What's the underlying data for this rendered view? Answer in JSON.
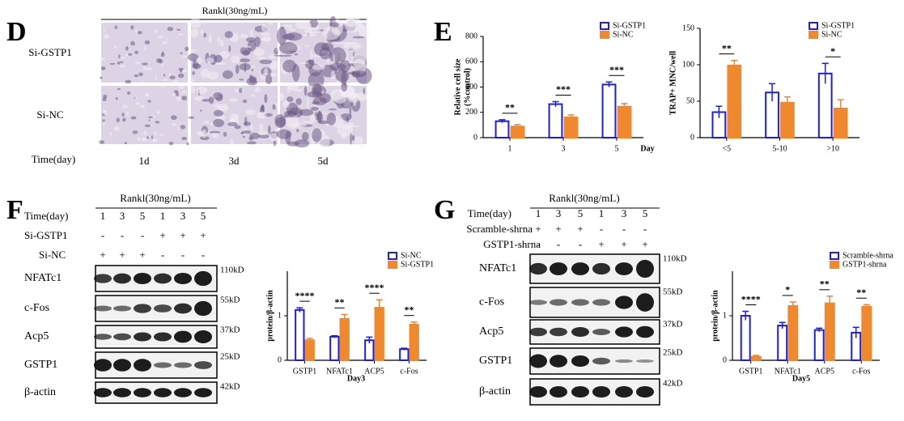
{
  "panel_d": {
    "label": "D",
    "header": "Rankl(30ng/mL)",
    "rows": [
      "Si-GSTP1",
      "Si-NC"
    ],
    "time_label": "Time(day)",
    "columns": [
      "1d",
      "3d",
      "5d"
    ]
  },
  "panel_e": {
    "label": "E"
  },
  "panel_f": {
    "label": "F",
    "header": "Rankl(30ng/mL)",
    "conditions": [
      {
        "name": "Time(day)",
        "lanes": [
          "1",
          "3",
          "5",
          "1",
          "3",
          "5"
        ]
      },
      {
        "name": "Si-GSTP1",
        "lanes": [
          "-",
          "-",
          "-",
          "+",
          "+",
          "+"
        ]
      },
      {
        "name": "Si-NC",
        "lanes": [
          "+",
          "+",
          "+",
          "-",
          "-",
          "-"
        ]
      }
    ],
    "bands": [
      {
        "name": "NFATc1",
        "size": "110kD"
      },
      {
        "name": "c-Fos",
        "size": "55kD"
      },
      {
        "name": "Acp5",
        "size": "37kD"
      },
      {
        "name": "GSTP1",
        "size": "25kD"
      },
      {
        "name": "β-actin",
        "size": "42kD"
      }
    ]
  },
  "panel_g": {
    "label": "G",
    "header": "Rankl(30ng/mL)",
    "conditions": [
      {
        "name": "Time(day)",
        "lanes": [
          "1",
          "3",
          "5",
          "1",
          "3",
          "5"
        ]
      },
      {
        "name": "Scramble-shrna",
        "lanes": [
          "+",
          "+",
          "+",
          "-",
          "-",
          "-"
        ]
      },
      {
        "name": "GSTP1-shrna",
        "lanes": [
          "-",
          "-",
          "-",
          "+",
          "+",
          "+"
        ]
      }
    ],
    "bands": [
      {
        "name": "NFATc1",
        "size": "110kD"
      },
      {
        "name": "c-Fos",
        "size": "55kD"
      },
      {
        "name": "Acp5",
        "size": "37kD"
      },
      {
        "name": "GSTP1",
        "size": "25kD"
      },
      {
        "name": "β-actin",
        "size": "42kD"
      }
    ]
  },
  "chart_data": [
    {
      "type": "bar",
      "ylabel": [
        "Relative cell size",
        "(%control)"
      ],
      "xlabel": "Day",
      "categories": [
        "1",
        "3",
        "5"
      ],
      "series": [
        {
          "name": "Si-GSTP1",
          "color": "#1f1fe0",
          "filled": false,
          "values": [
            130,
            265,
            420
          ],
          "errors": [
            12,
            20,
            20
          ]
        },
        {
          "name": "Si-NC",
          "color": "#f0892e",
          "filled": true,
          "values": [
            88,
            160,
            245
          ],
          "errors": [
            15,
            20,
            25
          ]
        }
      ],
      "significance": [
        "**",
        "***",
        "***"
      ],
      "ylim": [
        0,
        800
      ],
      "yticks": [
        0,
        200,
        400,
        600,
        800
      ],
      "legend": "top-right"
    },
    {
      "type": "bar",
      "ylabel": "TRAP+ MNC/well",
      "categories": [
        "<5",
        "5-10",
        ">10"
      ],
      "series": [
        {
          "name": "Si-GSTP1",
          "color": "#1f1fe0",
          "filled": false,
          "values": [
            35,
            62,
            88
          ],
          "errors": [
            8,
            12,
            14
          ]
        },
        {
          "name": "Si-NC",
          "color": "#f0892e",
          "filled": true,
          "values": [
            99,
            48,
            40
          ],
          "errors": [
            7,
            8,
            12
          ]
        }
      ],
      "significance": [
        "**",
        null,
        "*"
      ],
      "ylim": [
        0,
        150
      ],
      "yticks": [
        0,
        50,
        100,
        150
      ],
      "legend": "top-right"
    },
    {
      "type": "bar",
      "ylabel": "protein/β-actin",
      "xlabel": "Day3",
      "categories": [
        "GSTP1",
        "NFATc1",
        "ACP5",
        "c-Fos"
      ],
      "series": [
        {
          "name": "Si-NC",
          "color": "#1f1fe0",
          "filled": false,
          "values": [
            1.13,
            0.53,
            0.45,
            0.25
          ],
          "errors": [
            0.05,
            0.02,
            0.07,
            0.02
          ]
        },
        {
          "name": "Si-GSTP1",
          "color": "#f0892e",
          "filled": true,
          "values": [
            0.45,
            0.93,
            1.18,
            0.8
          ],
          "errors": [
            0.04,
            0.1,
            0.18,
            0.06
          ]
        }
      ],
      "significance": [
        "****",
        "**",
        "****",
        "**"
      ],
      "ylim": [
        0,
        2
      ],
      "yticks": [
        0,
        1
      ],
      "legend": "top-right"
    },
    {
      "type": "bar",
      "ylabel": "protein/β-actin",
      "xlabel": "Day5",
      "categories": [
        "GSTP1",
        "NFATc1",
        "ACP5",
        "c-Fos"
      ],
      "series": [
        {
          "name": "Scramble-shrna",
          "color": "#1f1fe0",
          "filled": false,
          "values": [
            1.0,
            0.78,
            0.68,
            0.62
          ],
          "errors": [
            0.1,
            0.07,
            0.04,
            0.12
          ]
        },
        {
          "name": "GSTP1-shrna",
          "color": "#f0892e",
          "filled": true,
          "values": [
            0.08,
            1.22,
            1.28,
            1.2
          ],
          "errors": [
            0.03,
            0.09,
            0.16,
            0.05
          ]
        }
      ],
      "significance": [
        "****",
        "*",
        "**",
        "**"
      ],
      "ylim": [
        0,
        2
      ],
      "yticks": [
        0,
        1
      ],
      "legend": "top-right"
    }
  ]
}
